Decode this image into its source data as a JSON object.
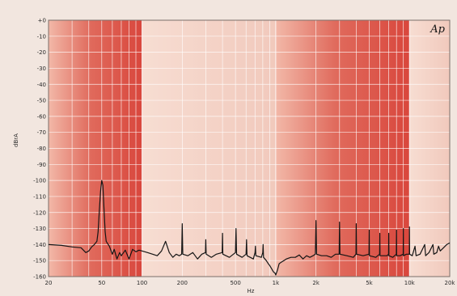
{
  "chart_data": {
    "type": "line",
    "brand": "Ap",
    "ylabel": "dBrA",
    "xlabel": "Hz",
    "x_scale": "log",
    "xlim": [
      20,
      20000
    ],
    "ylim": [
      -160,
      0
    ],
    "yticks": [
      0,
      -10,
      -20,
      -30,
      -40,
      -50,
      -60,
      -70,
      -80,
      -90,
      -100,
      -110,
      -120,
      -130,
      -140,
      -150,
      -160
    ],
    "ytick_labels": [
      "+0",
      "-10",
      "-20",
      "-30",
      "-40",
      "-50",
      "-60",
      "-70",
      "-80",
      "-90",
      "-100",
      "-110",
      "-120",
      "-130",
      "-140",
      "-150",
      "-160"
    ],
    "xticks": [
      20,
      50,
      100,
      200,
      500,
      1000,
      2000,
      5000,
      10000,
      20000
    ],
    "xtick_labels": [
      "20",
      "50",
      "100",
      "200",
      "500",
      "1k",
      "2k",
      "5k",
      "10k",
      "20k"
    ],
    "grid": true,
    "colors": {
      "band_dark": "#e06a5c",
      "band_light": "#f7ddd2",
      "grid": "#ffffff",
      "trace": "#151515",
      "frame": "#7a6f6a"
    },
    "series": [
      {
        "values": [
          [
            20,
            -140
          ],
          [
            25,
            -140.5
          ],
          [
            30,
            -141.5
          ],
          [
            35,
            -142
          ],
          [
            38,
            -145
          ],
          [
            40,
            -144
          ],
          [
            42,
            -141.5
          ],
          [
            44,
            -140
          ],
          [
            46,
            -138
          ],
          [
            47,
            -132
          ],
          [
            48,
            -118
          ],
          [
            49,
            -107
          ],
          [
            50,
            -100
          ],
          [
            51,
            -103
          ],
          [
            52,
            -118
          ],
          [
            53,
            -132
          ],
          [
            54,
            -138
          ],
          [
            57,
            -141
          ],
          [
            60,
            -146
          ],
          [
            62,
            -143
          ],
          [
            65,
            -149
          ],
          [
            68,
            -145
          ],
          [
            70,
            -147
          ],
          [
            75,
            -143.5
          ],
          [
            80,
            -149
          ],
          [
            85,
            -143
          ],
          [
            90,
            -144.5
          ],
          [
            95,
            -143.5
          ],
          [
            100,
            -144
          ],
          [
            110,
            -145
          ],
          [
            120,
            -146
          ],
          [
            130,
            -147
          ],
          [
            140,
            -144
          ],
          [
            150,
            -138
          ],
          [
            160,
            -145
          ],
          [
            170,
            -148
          ],
          [
            180,
            -146
          ],
          [
            190,
            -147
          ],
          [
            198,
            -146
          ],
          [
            200,
            -127
          ],
          [
            202,
            -146
          ],
          [
            220,
            -147
          ],
          [
            240,
            -145
          ],
          [
            260,
            -149
          ],
          [
            280,
            -146
          ],
          [
            298,
            -145
          ],
          [
            300,
            -137
          ],
          [
            302,
            -146
          ],
          [
            330,
            -148
          ],
          [
            360,
            -146
          ],
          [
            398,
            -145
          ],
          [
            400,
            -133
          ],
          [
            402,
            -146
          ],
          [
            450,
            -148
          ],
          [
            500,
            -145
          ],
          [
            505,
            -130
          ],
          [
            510,
            -146
          ],
          [
            560,
            -148
          ],
          [
            600,
            -146
          ],
          [
            605,
            -137
          ],
          [
            610,
            -147
          ],
          [
            680,
            -149
          ],
          [
            700,
            -145
          ],
          [
            705,
            -141
          ],
          [
            710,
            -147
          ],
          [
            780,
            -148
          ],
          [
            800,
            -145
          ],
          [
            805,
            -140
          ],
          [
            810,
            -148
          ],
          [
            850,
            -150
          ],
          [
            880,
            -152
          ],
          [
            900,
            -153
          ],
          [
            930,
            -155
          ],
          [
            960,
            -157
          ],
          [
            990,
            -158
          ],
          [
            1000,
            -159
          ],
          [
            1030,
            -156
          ],
          [
            1060,
            -152
          ],
          [
            1100,
            -151
          ],
          [
            1150,
            -150
          ],
          [
            1200,
            -149
          ],
          [
            1300,
            -148
          ],
          [
            1400,
            -148
          ],
          [
            1500,
            -146.5
          ],
          [
            1600,
            -149
          ],
          [
            1700,
            -147
          ],
          [
            1800,
            -148
          ],
          [
            1900,
            -147
          ],
          [
            1980,
            -146
          ],
          [
            2000,
            -125
          ],
          [
            2020,
            -146
          ],
          [
            2200,
            -147
          ],
          [
            2400,
            -147
          ],
          [
            2600,
            -148
          ],
          [
            2800,
            -146
          ],
          [
            2980,
            -146
          ],
          [
            3000,
            -126
          ],
          [
            3020,
            -146
          ],
          [
            3400,
            -147
          ],
          [
            3800,
            -148
          ],
          [
            3980,
            -146
          ],
          [
            4000,
            -127
          ],
          [
            4020,
            -146
          ],
          [
            4500,
            -147
          ],
          [
            4980,
            -146
          ],
          [
            5000,
            -131
          ],
          [
            5020,
            -147
          ],
          [
            5600,
            -148
          ],
          [
            5980,
            -146
          ],
          [
            6000,
            -133
          ],
          [
            6020,
            -147
          ],
          [
            6800,
            -147
          ],
          [
            6980,
            -146
          ],
          [
            7000,
            -133
          ],
          [
            7020,
            -147
          ],
          [
            7500,
            -148
          ],
          [
            7980,
            -146
          ],
          [
            8000,
            -131
          ],
          [
            8020,
            -147
          ],
          [
            8500,
            -147
          ],
          [
            8980,
            -146
          ],
          [
            9000,
            -130
          ],
          [
            9020,
            -147
          ],
          [
            9500,
            -146
          ],
          [
            9980,
            -146
          ],
          [
            10000,
            -129
          ],
          [
            10020,
            -146
          ],
          [
            10500,
            -147
          ],
          [
            11000,
            -141
          ],
          [
            11200,
            -147
          ],
          [
            12000,
            -146
          ],
          [
            13000,
            -140
          ],
          [
            13200,
            -147
          ],
          [
            14000,
            -145
          ],
          [
            15000,
            -140
          ],
          [
            15200,
            -146
          ],
          [
            16000,
            -145
          ],
          [
            16500,
            -141
          ],
          [
            17000,
            -144
          ],
          [
            18000,
            -142
          ],
          [
            19000,
            -140
          ],
          [
            20000,
            -139
          ]
        ]
      }
    ]
  }
}
